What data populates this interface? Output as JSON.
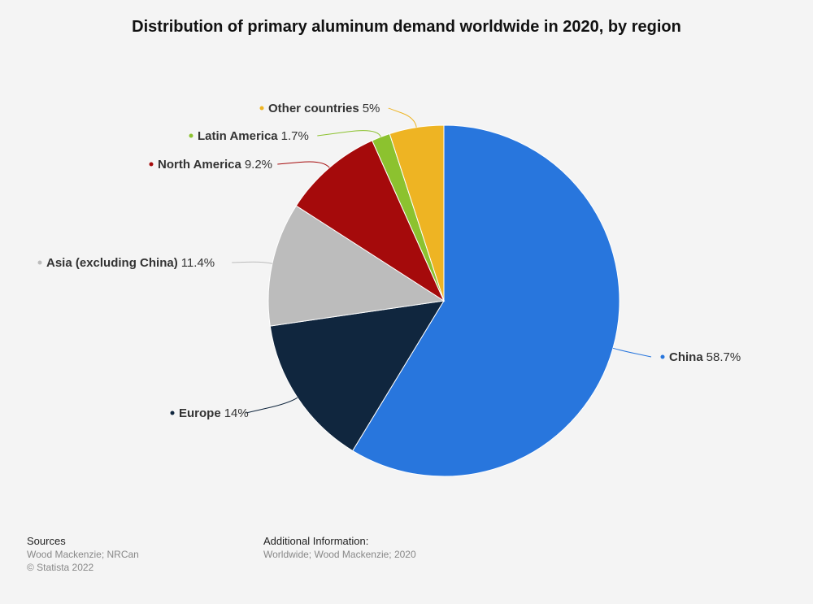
{
  "chart_data": {
    "type": "pie",
    "title": "Distribution of primary aluminum demand worldwide in 2020, by region",
    "value_suffix": "%",
    "slices": [
      {
        "label": "China",
        "value": 58.7,
        "display": "58.7%",
        "color": "#2876dd"
      },
      {
        "label": "Europe",
        "value": 14,
        "display": "14%",
        "color": "#10263e"
      },
      {
        "label": "Asia (excluding China)",
        "value": 11.4,
        "display": "11.4%",
        "color": "#bcbcbc"
      },
      {
        "label": "North America",
        "value": 9.2,
        "display": "9.2%",
        "color": "#a50a0b"
      },
      {
        "label": "Latin America",
        "value": 1.7,
        "display": "1.7%",
        "color": "#8cc22f"
      },
      {
        "label": "Other countries",
        "value": 5,
        "display": "5%",
        "color": "#eeb423"
      }
    ]
  },
  "footer": {
    "sources_heading": "Sources",
    "sources_text": "Wood Mackenzie; NRCan",
    "copyright": "© Statista 2022",
    "additional_heading": "Additional Information:",
    "additional_text": "Worldwide; Wood Mackenzie; 2020"
  }
}
